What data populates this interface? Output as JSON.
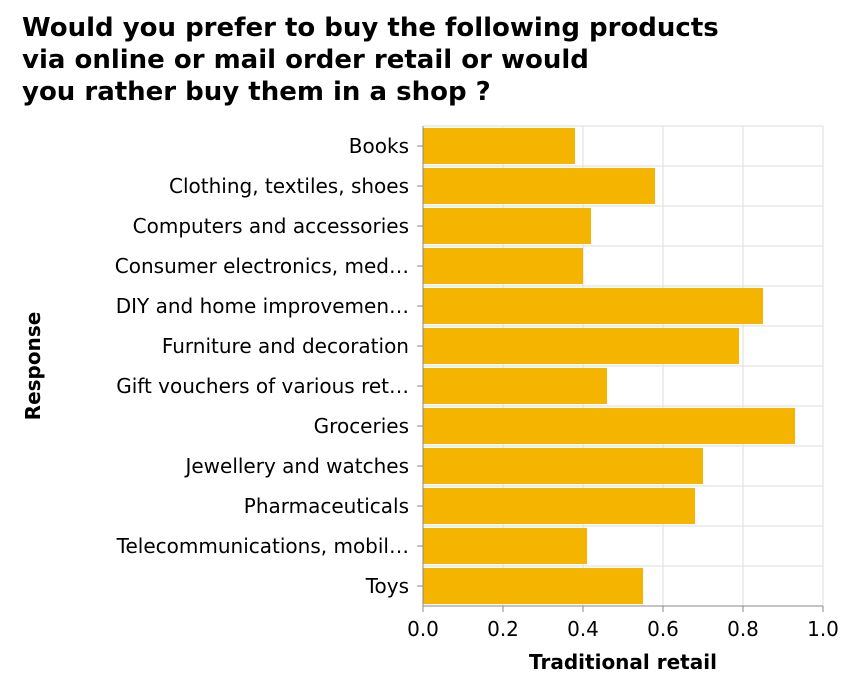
{
  "chart_data": {
    "type": "bar",
    "orientation": "horizontal",
    "title_lines": [
      "Would you prefer to buy the following products",
      "via online or mail order retail or would",
      "you rather buy them in a shop ?"
    ],
    "xlabel": "Traditional retail",
    "ylabel": "Response",
    "xlim": [
      0,
      1.0
    ],
    "xticks": [
      "0.0",
      "0.2",
      "0.4",
      "0.6",
      "0.8",
      "1.0"
    ],
    "grid": true,
    "bar_color": "#f5b400",
    "categories": [
      "Books",
      "Clothing, textiles, shoes",
      "Computers and accessories",
      "Consumer electronics, med…",
      "DIY and home improvemen…",
      "Furniture and decoration",
      "Gift vouchers of various ret…",
      "Groceries",
      "Jewellery and watches",
      "Pharmaceuticals",
      "Telecommunications, mobil…",
      "Toys"
    ],
    "values": [
      0.38,
      0.58,
      0.42,
      0.4,
      0.85,
      0.79,
      0.46,
      0.93,
      0.7,
      0.68,
      0.41,
      0.55
    ]
  }
}
